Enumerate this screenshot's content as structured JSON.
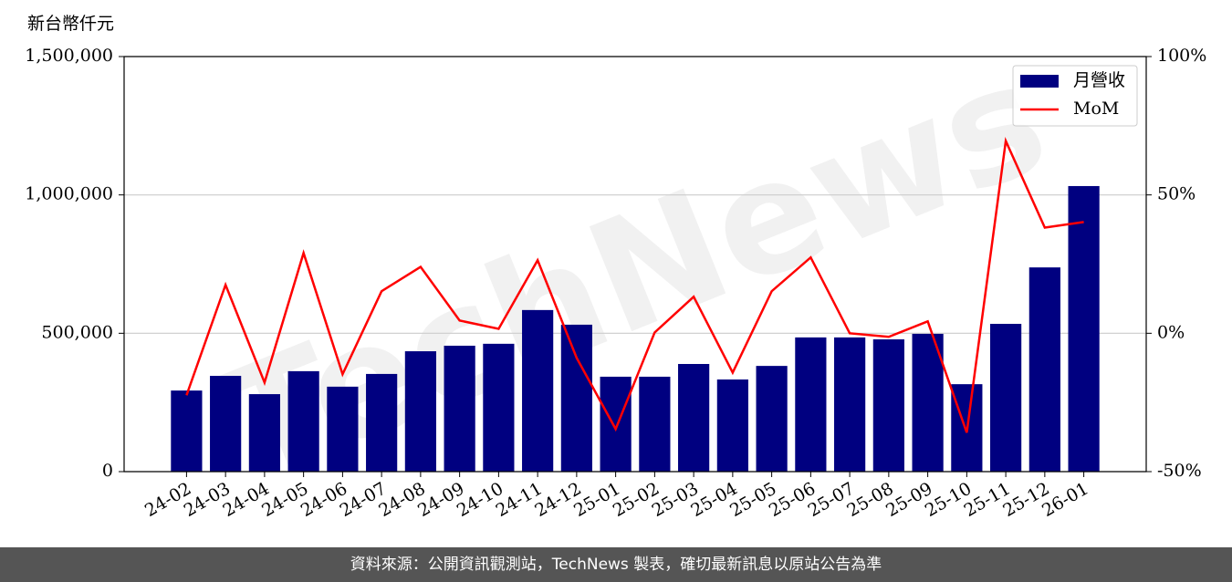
{
  "chart_data": {
    "type": "bar",
    "y_label": "新台幣仟元",
    "watermark": "TechNews",
    "categories": [
      "24-02",
      "24-03",
      "24-04",
      "24-05",
      "24-06",
      "24-07",
      "24-08",
      "24-09",
      "24-10",
      "24-11",
      "24-12",
      "25-01",
      "25-02",
      "25-03",
      "25-04",
      "25-05",
      "25-06",
      "25-07",
      "25-08",
      "25-09",
      "25-10",
      "25-11",
      "25-12",
      "26-01"
    ],
    "series": [
      {
        "name": "月營收",
        "type": "bar",
        "color": "#000080",
        "values": [
          293000,
          346000,
          280000,
          363000,
          307000,
          353000,
          435000,
          455000,
          462000,
          584000,
          531000,
          343000,
          343000,
          389000,
          333000,
          382000,
          485000,
          485000,
          478000,
          498000,
          316000,
          534000,
          738000,
          1032000
        ]
      },
      {
        "name": "MoM",
        "type": "line",
        "axis": "y2",
        "color": "#ff0000",
        "values": [
          -22.4,
          17.5,
          -17.8,
          29,
          -14.8,
          15.2,
          24,
          4.6,
          1.6,
          26.4,
          -8.9,
          -34.6,
          0.3,
          13.2,
          -14.2,
          15.2,
          27.4,
          0,
          -1.3,
          4.3,
          -35.9,
          69.5,
          38.2,
          40.2
        ]
      }
    ],
    "ylim": [
      0,
      1500000
    ],
    "yticks": [
      0,
      {
        "value": 500000,
        "label": "500,000"
      },
      {
        "value": 1000000,
        "label": "1,000,000"
      },
      {
        "value": 1500000,
        "label": "1,500,000"
      }
    ],
    "y2lim": [
      -50,
      100
    ],
    "y2ticks": [
      {
        "value": -50,
        "label": "-50%"
      },
      {
        "value": 0,
        "label": "0%"
      },
      {
        "value": 50,
        "label": "50%"
      },
      {
        "value": 100,
        "label": "100%"
      }
    ],
    "grid": true,
    "legend": "upper right"
  },
  "footer": "資料來源：公開資訊觀測站，TechNews 製表，確切最新訊息以原站公告為準"
}
